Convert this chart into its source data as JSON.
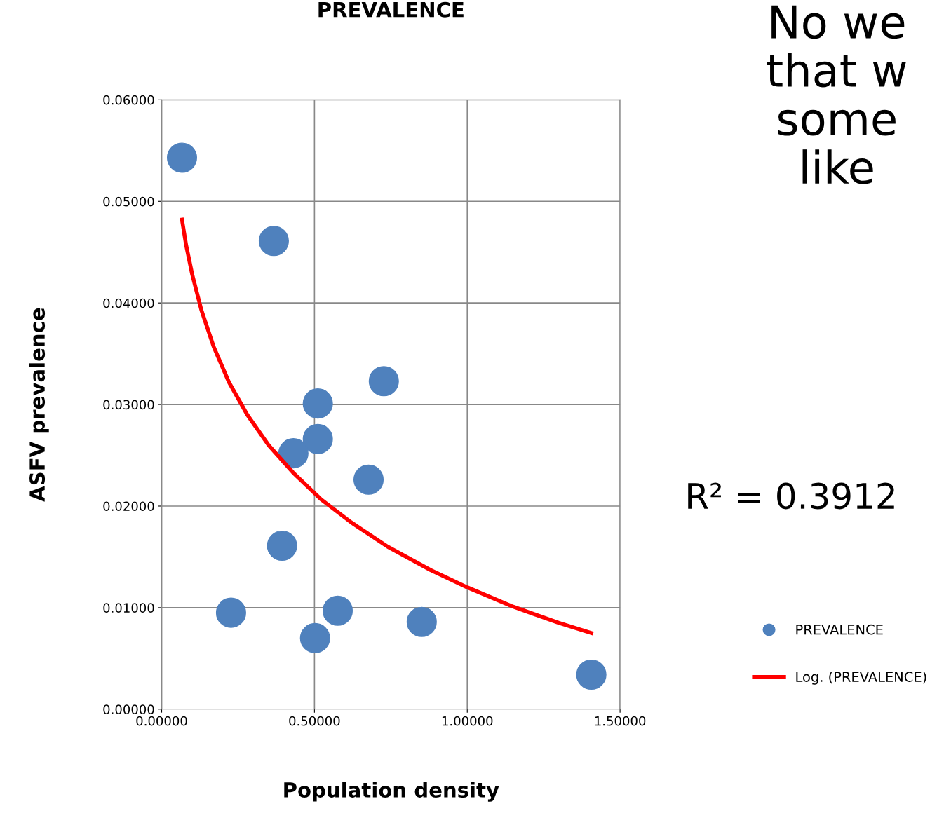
{
  "chart_data": {
    "type": "scatter",
    "title": "PREVALENCE",
    "xlabel": "Population density",
    "ylabel": "ASFV prevalence",
    "series": [
      {
        "name": "PREVALENCE",
        "color": "#4f81bd",
        "marker": "circle",
        "x": [
          0.0665,
          0.367,
          0.727,
          0.511,
          0.511,
          0.431,
          0.677,
          0.394,
          0.227,
          0.576,
          0.502,
          0.851,
          1.406
        ],
        "values": [
          0.0543,
          0.0461,
          0.0323,
          0.0301,
          0.0266,
          0.0252,
          0.0226,
          0.0161,
          0.0095,
          0.0097,
          0.007,
          0.0086,
          0.0034
        ]
      },
      {
        "name": "Log. (PREVALENCE)",
        "type": "line",
        "color": "#ff0000",
        "marker": "none",
        "line_style": "solid",
        "x": [
          0.0665,
          0.08,
          0.1,
          0.13,
          0.17,
          0.22,
          0.28,
          0.35,
          0.43,
          0.52,
          0.62,
          0.74,
          0.88,
          1.0,
          1.15,
          1.3,
          1.406
        ],
        "values": [
          0.0482,
          0.0457,
          0.0428,
          0.0393,
          0.0357,
          0.0322,
          0.029,
          0.026,
          0.0233,
          0.0207,
          0.0184,
          0.016,
          0.0137,
          0.012,
          0.0101,
          0.0085,
          0.0075
        ]
      }
    ],
    "xlim": [
      0,
      1.5
    ],
    "ylim": [
      0,
      0.06
    ],
    "xticks": [
      {
        "value": 0,
        "label": "0.00000"
      },
      {
        "value": 0.5,
        "label": "0.50000"
      },
      {
        "value": 1.0,
        "label": "1.00000"
      },
      {
        "value": 1.5,
        "label": "1.50000"
      }
    ],
    "yticks": [
      {
        "value": 0,
        "label": "0.00000"
      },
      {
        "value": 0.01,
        "label": "0.01000"
      },
      {
        "value": 0.02,
        "label": "0.02000"
      },
      {
        "value": 0.03,
        "label": "0.03000"
      },
      {
        "value": 0.04,
        "label": "0.04000"
      },
      {
        "value": 0.05,
        "label": "0.05000"
      },
      {
        "value": 0.06,
        "label": "0.06000"
      }
    ],
    "grid": true,
    "legend": "right",
    "annotations": [
      "No we\nthat w\nsome\nlike",
      "R² = 0.3912"
    ]
  }
}
